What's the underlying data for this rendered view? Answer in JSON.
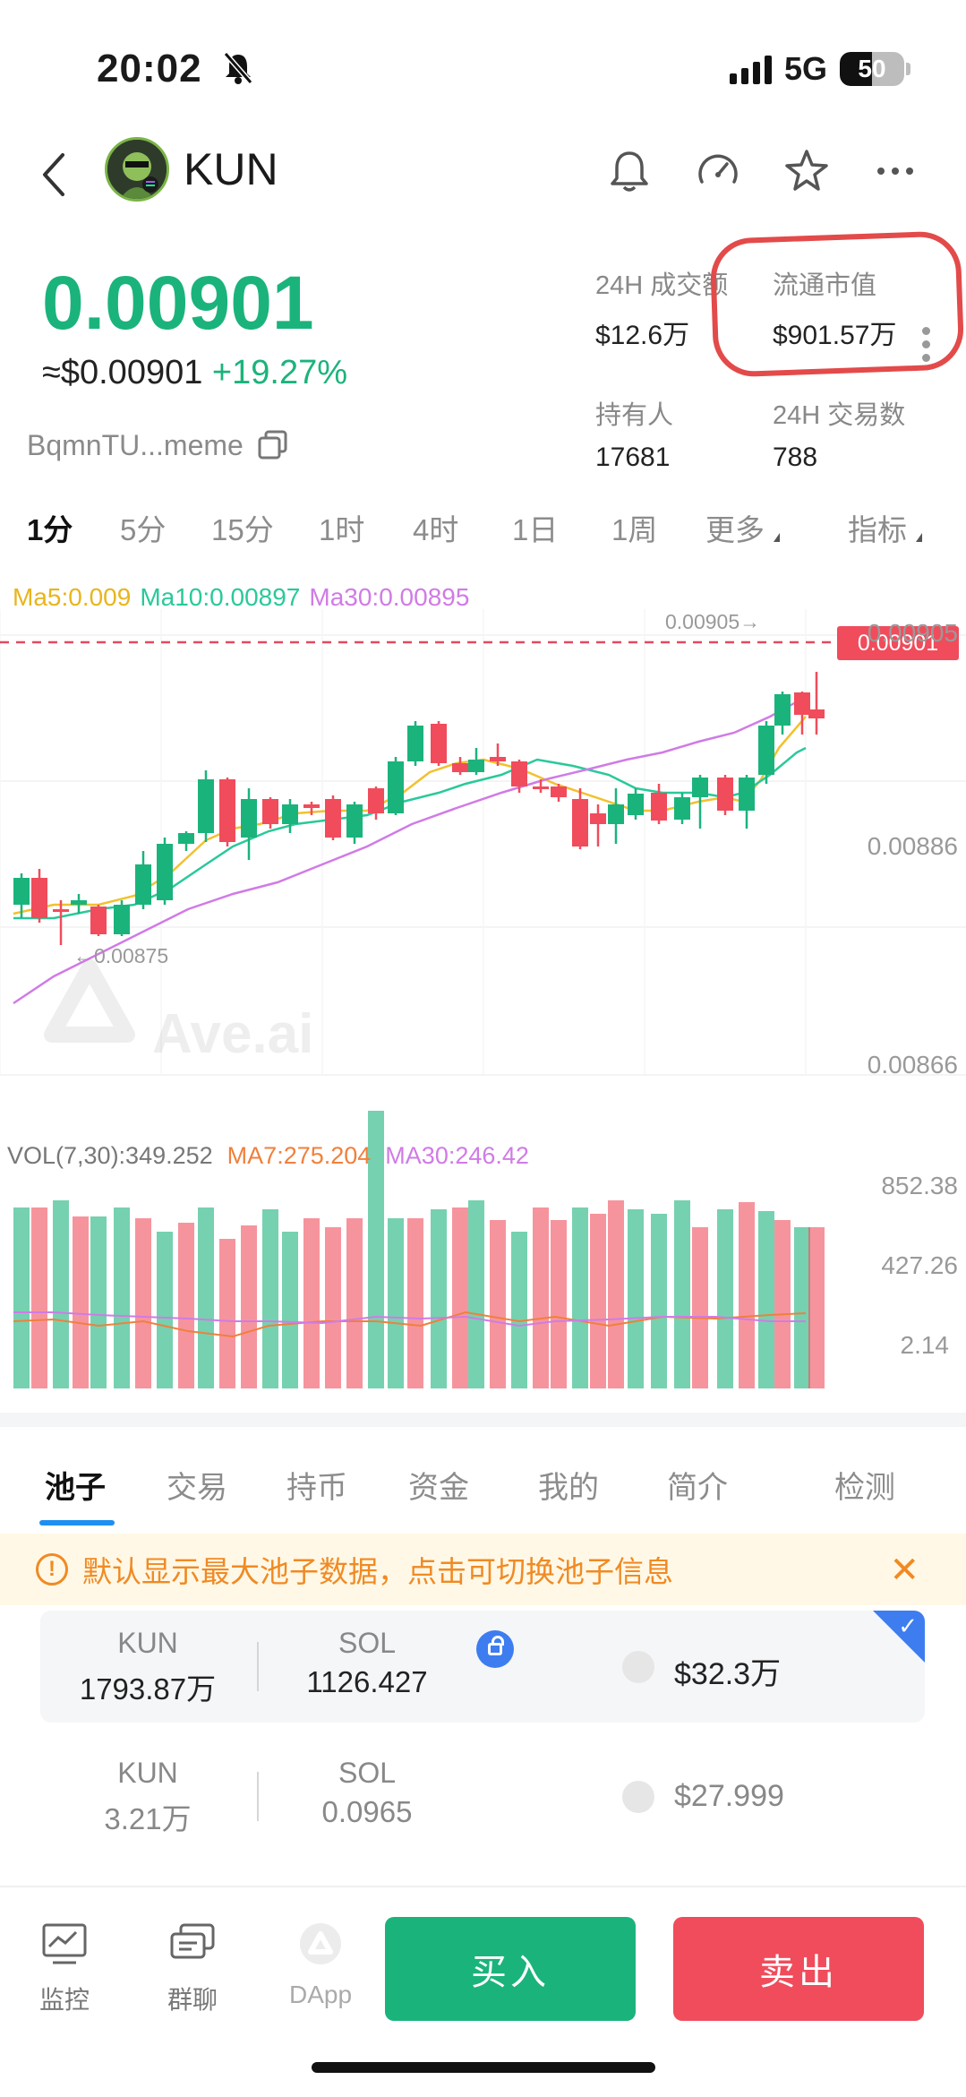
{
  "status_bar": {
    "time": "20:02",
    "network": "5G",
    "battery": "50"
  },
  "header": {
    "title": "KUN"
  },
  "price": {
    "main": "0.00901",
    "usd": "≈$0.00901",
    "change": "+19.27%",
    "address": "BqmnTU...meme"
  },
  "stats": [
    {
      "label": "24H 成交额",
      "value": "$12.6万"
    },
    {
      "label": "流通市值",
      "value": "$901.57万"
    },
    {
      "label": "持有人",
      "value": "17681"
    },
    {
      "label": "24H 交易数",
      "value": "788"
    }
  ],
  "interval_tabs": [
    "1分",
    "5分",
    "15分",
    "1时",
    "4时",
    "1日",
    "1周",
    "更多",
    "指标"
  ],
  "ma_legend": {
    "ma5": "Ma5:0.009",
    "ma10": "Ma10:0.00897",
    "ma30": "Ma30:0.00895"
  },
  "chart": {
    "high_marker": "0.00905→",
    "low_marker": "←0.00875",
    "current_price_tag": "0.00901",
    "price_axis": [
      "0.00905",
      "0.00886",
      "0.00866"
    ],
    "watermark": "Ave.ai",
    "volume_legend": {
      "vol": "VOL(7,30):349.252",
      "ma7": "MA7:275.204",
      "ma30": "MA30:246.42"
    },
    "volume_axis": [
      "852.38",
      "427.26",
      "2.14"
    ],
    "colors": {
      "up": "#1bb37c",
      "down": "#f04c5c",
      "ma5": "#f2c12e",
      "ma10": "#29c99a",
      "ma30": "#d07be6",
      "vol_ma7": "#f0803c"
    }
  },
  "bottom_tabs": [
    "池子",
    "交易",
    "持币",
    "资金",
    "我的",
    "简介",
    "检测"
  ],
  "notice": "默认显示最大池子数据，点击可切换池子信息",
  "pools": [
    {
      "token_a": "KUN",
      "amount_a": "1793.87万",
      "token_b": "SOL",
      "amount_b": "1126.427",
      "usd": "$32.3万"
    },
    {
      "token_a": "KUN",
      "amount_a": "3.21万",
      "token_b": "SOL",
      "amount_b": "0.0965",
      "usd": "$27.999"
    }
  ],
  "nav": {
    "monitor": "监控",
    "group": "群聊",
    "dapp": "DApp",
    "buy": "买入",
    "sell": "卖出"
  }
}
